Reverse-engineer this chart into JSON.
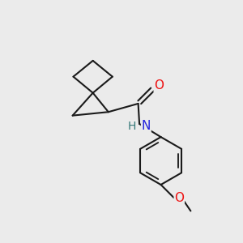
{
  "background_color": "#ebebeb",
  "bond_color": "#1a1a1a",
  "bond_width": 1.5,
  "atom_colors": {
    "O": "#ee1111",
    "N": "#2222dd",
    "H": "#337777",
    "C": "#111111"
  },
  "font_size_atom": 11,
  "font_size_h": 10
}
